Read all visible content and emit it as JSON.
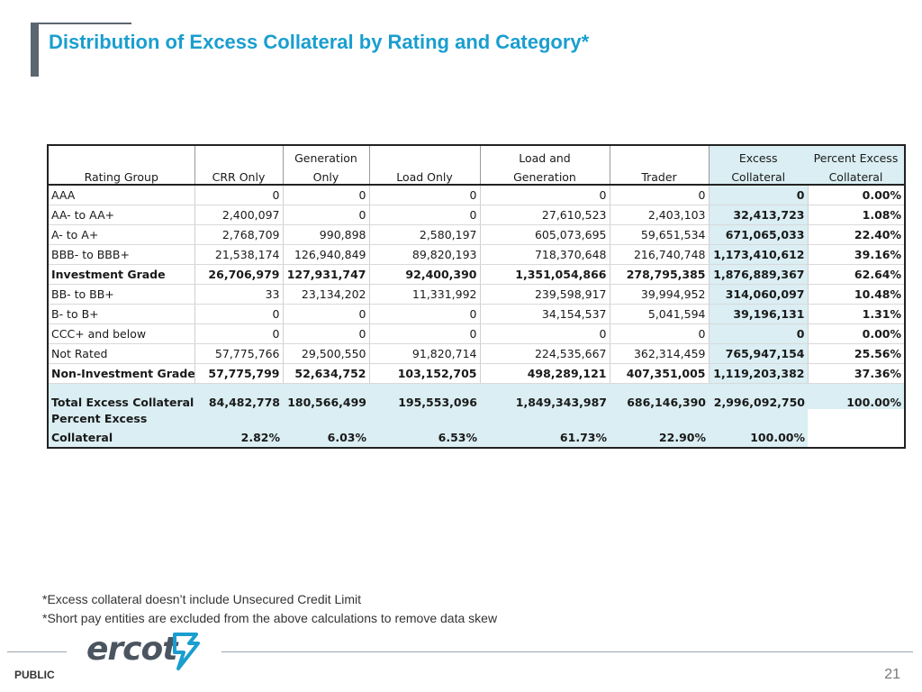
{
  "title": "Distribution of Excess Collateral by Rating and Category*",
  "table": {
    "headers": [
      {
        "line1": "",
        "line2": "Rating Group"
      },
      {
        "line1": "",
        "line2": "CRR Only"
      },
      {
        "line1": "Generation",
        "line2": "Only"
      },
      {
        "line1": "",
        "line2": "Load Only"
      },
      {
        "line1": "Load and",
        "line2": "Generation"
      },
      {
        "line1": "",
        "line2": "Trader"
      },
      {
        "line1": "Excess",
        "line2": "Collateral"
      },
      {
        "line1": "Percent Excess",
        "line2": "Collateral"
      }
    ],
    "rows": [
      {
        "cells": [
          "AAA",
          "0",
          "0",
          "0",
          "0",
          "0",
          "0",
          "0.00%"
        ],
        "bold": false
      },
      {
        "cells": [
          "AA- to AA+",
          "2,400,097",
          "0",
          "0",
          "27,610,523",
          "2,403,103",
          "32,413,723",
          "1.08%"
        ],
        "bold": false
      },
      {
        "cells": [
          "A- to A+",
          "2,768,709",
          "990,898",
          "2,580,197",
          "605,073,695",
          "59,651,534",
          "671,065,033",
          "22.40%"
        ],
        "bold": false
      },
      {
        "cells": [
          "BBB- to BBB+",
          "21,538,174",
          "126,940,849",
          "89,820,193",
          "718,370,648",
          "216,740,748",
          "1,173,410,612",
          "39.16%"
        ],
        "bold": false
      },
      {
        "cells": [
          "Investment Grade",
          "26,706,979",
          "127,931,747",
          "92,400,390",
          "1,351,054,866",
          "278,795,385",
          "1,876,889,367",
          "62.64%"
        ],
        "bold": true
      },
      {
        "cells": [
          "BB- to BB+",
          "33",
          "23,134,202",
          "11,331,992",
          "239,598,917",
          "39,994,952",
          "314,060,097",
          "10.48%"
        ],
        "bold": false
      },
      {
        "cells": [
          "B- to B+",
          "0",
          "0",
          "0",
          "34,154,537",
          "5,041,594",
          "39,196,131",
          "1.31%"
        ],
        "bold": false
      },
      {
        "cells": [
          "CCC+ and below",
          "0",
          "0",
          "0",
          "0",
          "0",
          "0",
          "0.00%"
        ],
        "bold": false
      },
      {
        "cells": [
          "Not Rated",
          "57,775,766",
          "29,500,550",
          "91,820,714",
          "224,535,667",
          "362,314,459",
          "765,947,154",
          "25.56%"
        ],
        "bold": false
      },
      {
        "cells": [
          "Non-Investment Grade",
          "57,775,799",
          "52,634,752",
          "103,152,705",
          "498,289,121",
          "407,351,005",
          "1,119,203,382",
          "37.36%"
        ],
        "bold": true
      }
    ],
    "total": {
      "cells": [
        "Total Excess Collateral",
        "84,482,778",
        "180,566,499",
        "195,553,096",
        "1,849,343,987",
        "686,146,390",
        "2,996,092,750",
        "100.00%"
      ]
    },
    "percent_row": {
      "label_line1": "Percent Excess",
      "label_line2": "Collateral",
      "cells": [
        "2.82%",
        "6.03%",
        "6.53%",
        "61.73%",
        "22.90%",
        "100.00%"
      ]
    }
  },
  "notes": [
    "*Excess collateral doesn’t include Unsecured Credit Limit",
    "*Short pay entities are excluded from the above calculations to remove data skew"
  ],
  "footer": {
    "logo_text": "ercot",
    "classification": "PUBLIC",
    "page_number": "21"
  },
  "colors": {
    "title": "#1a9ecf",
    "highlight": "#daeef3",
    "accent_bar": "#5b6770"
  }
}
